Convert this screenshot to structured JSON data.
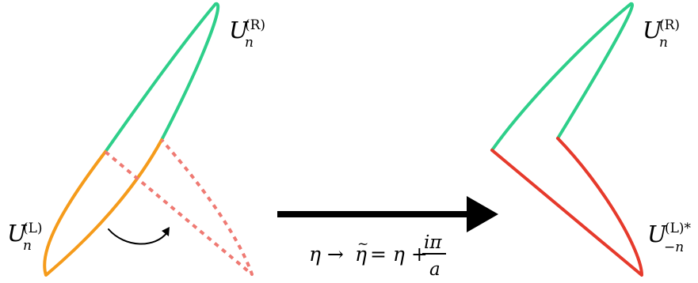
{
  "labels": {
    "left_top_base": "U",
    "left_top_sub": "n",
    "left_top_sup": "(R)",
    "left_bottom_base": "U",
    "left_bottom_sub": "n",
    "left_bottom_sup": "(L)",
    "right_top_base": "U",
    "right_top_sub": "n",
    "right_top_sup": "(R)",
    "right_bottom_base": "U",
    "right_bottom_sub": "−n",
    "right_bottom_sup": "(L)*"
  },
  "transform": {
    "lhs": "η → ",
    "eta_tilde": "η",
    "tilde": "~",
    "middle": " = η + ",
    "numerator": "iπ",
    "denominator": "a"
  },
  "colors": {
    "upper_contour": "#2ecf8a",
    "lower_contour_original": "#f59b1b",
    "dashed_reflection": "#ef7a73",
    "lower_contour_transformed": "#e63a2c",
    "arrow": "#000000",
    "text": "#000000"
  }
}
